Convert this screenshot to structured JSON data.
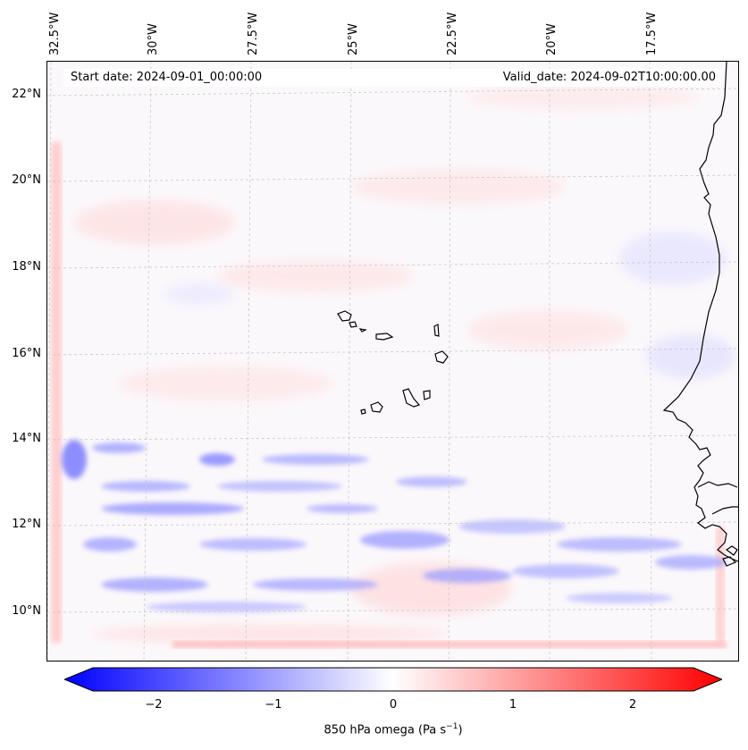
{
  "map": {
    "start_label": "Start date: 2024-09-01_00:00:00",
    "valid_label": "Valid_date: 2024-09-02T10:00:00.00",
    "lon_labels": [
      "32.5°W",
      "30°W",
      "27.5°W",
      "25°W",
      "22.5°W",
      "20°W",
      "17.5°W"
    ],
    "lat_labels": [
      "22°N",
      "20°N",
      "18°N",
      "16°N",
      "14°N",
      "12°N",
      "10°N"
    ],
    "colors": {
      "negative": "#0000ff",
      "positive": "#ff0000",
      "neutral": "#ffffff",
      "coastline": "#000000",
      "gridline": "#b0b0b0"
    }
  },
  "colorbar": {
    "label": "850 hPa omega (Pa s",
    "label_exp": "−1",
    "label_close": ")",
    "ticks": [
      "−2",
      "−1",
      "0",
      "1",
      "2"
    ]
  }
}
